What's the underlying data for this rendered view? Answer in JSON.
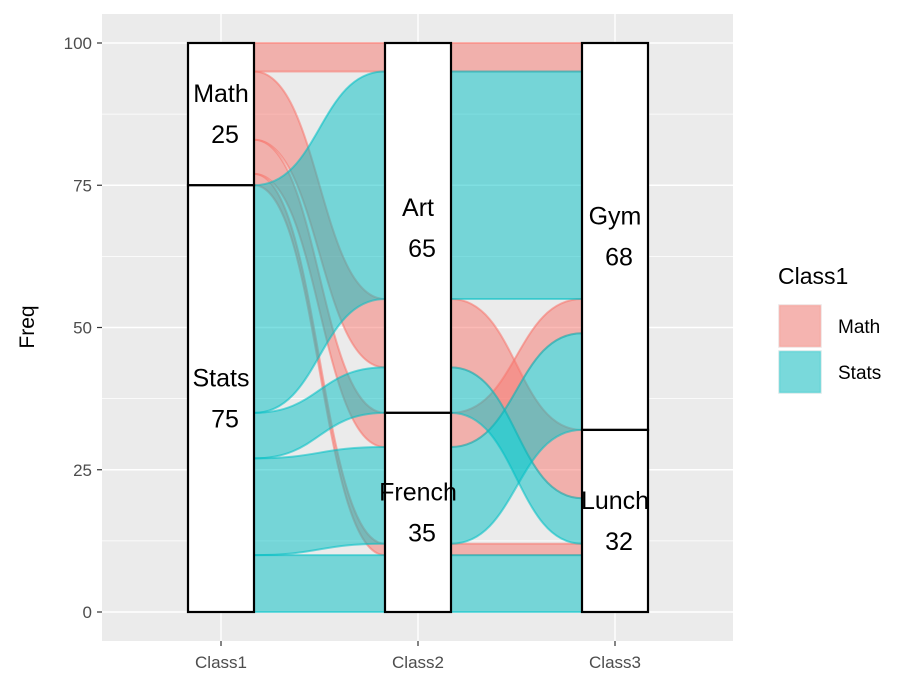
{
  "chart_data": {
    "type": "alluvial",
    "ylabel": "Freq",
    "xlabel": "",
    "ylim": [
      0,
      100
    ],
    "y_ticks": [
      0,
      25,
      50,
      75,
      100
    ],
    "axes": [
      "Class1",
      "Class2",
      "Class3"
    ],
    "strata": [
      [
        {
          "name": "Math",
          "count": 25
        },
        {
          "name": "Stats",
          "count": 75
        }
      ],
      [
        {
          "name": "Art",
          "count": 65
        },
        {
          "name": "French",
          "count": 35
        }
      ],
      [
        {
          "name": "Gym",
          "count": 68
        },
        {
          "name": "Lunch",
          "count": 32
        }
      ]
    ],
    "flows": [
      {
        "path": [
          "Math",
          "Art",
          "Gym"
        ],
        "freq": 5,
        "fill": "Math"
      },
      {
        "path": [
          "Math",
          "Art",
          "Lunch"
        ],
        "freq": 12,
        "fill": "Math"
      },
      {
        "path": [
          "Math",
          "French",
          "Gym"
        ],
        "freq": 6,
        "fill": "Math"
      },
      {
        "path": [
          "Math",
          "French",
          "Lunch"
        ],
        "freq": 2,
        "fill": "Math"
      },
      {
        "path": [
          "Stats",
          "Art",
          "Gym"
        ],
        "freq": 40,
        "fill": "Stats"
      },
      {
        "path": [
          "Stats",
          "Art",
          "Lunch"
        ],
        "freq": 8,
        "fill": "Stats"
      },
      {
        "path": [
          "Stats",
          "French",
          "Gym"
        ],
        "freq": 17,
        "fill": "Stats"
      },
      {
        "path": [
          "Stats",
          "French",
          "Lunch"
        ],
        "freq": 10,
        "fill": "Stats"
      }
    ],
    "legend": {
      "title": "Class1",
      "items": [
        {
          "label": "Math",
          "color": "#F8766D"
        },
        {
          "label": "Stats",
          "color": "#00BFC4"
        }
      ],
      "position": "right"
    },
    "grid": true,
    "panel_background": "#EBEBEB"
  }
}
